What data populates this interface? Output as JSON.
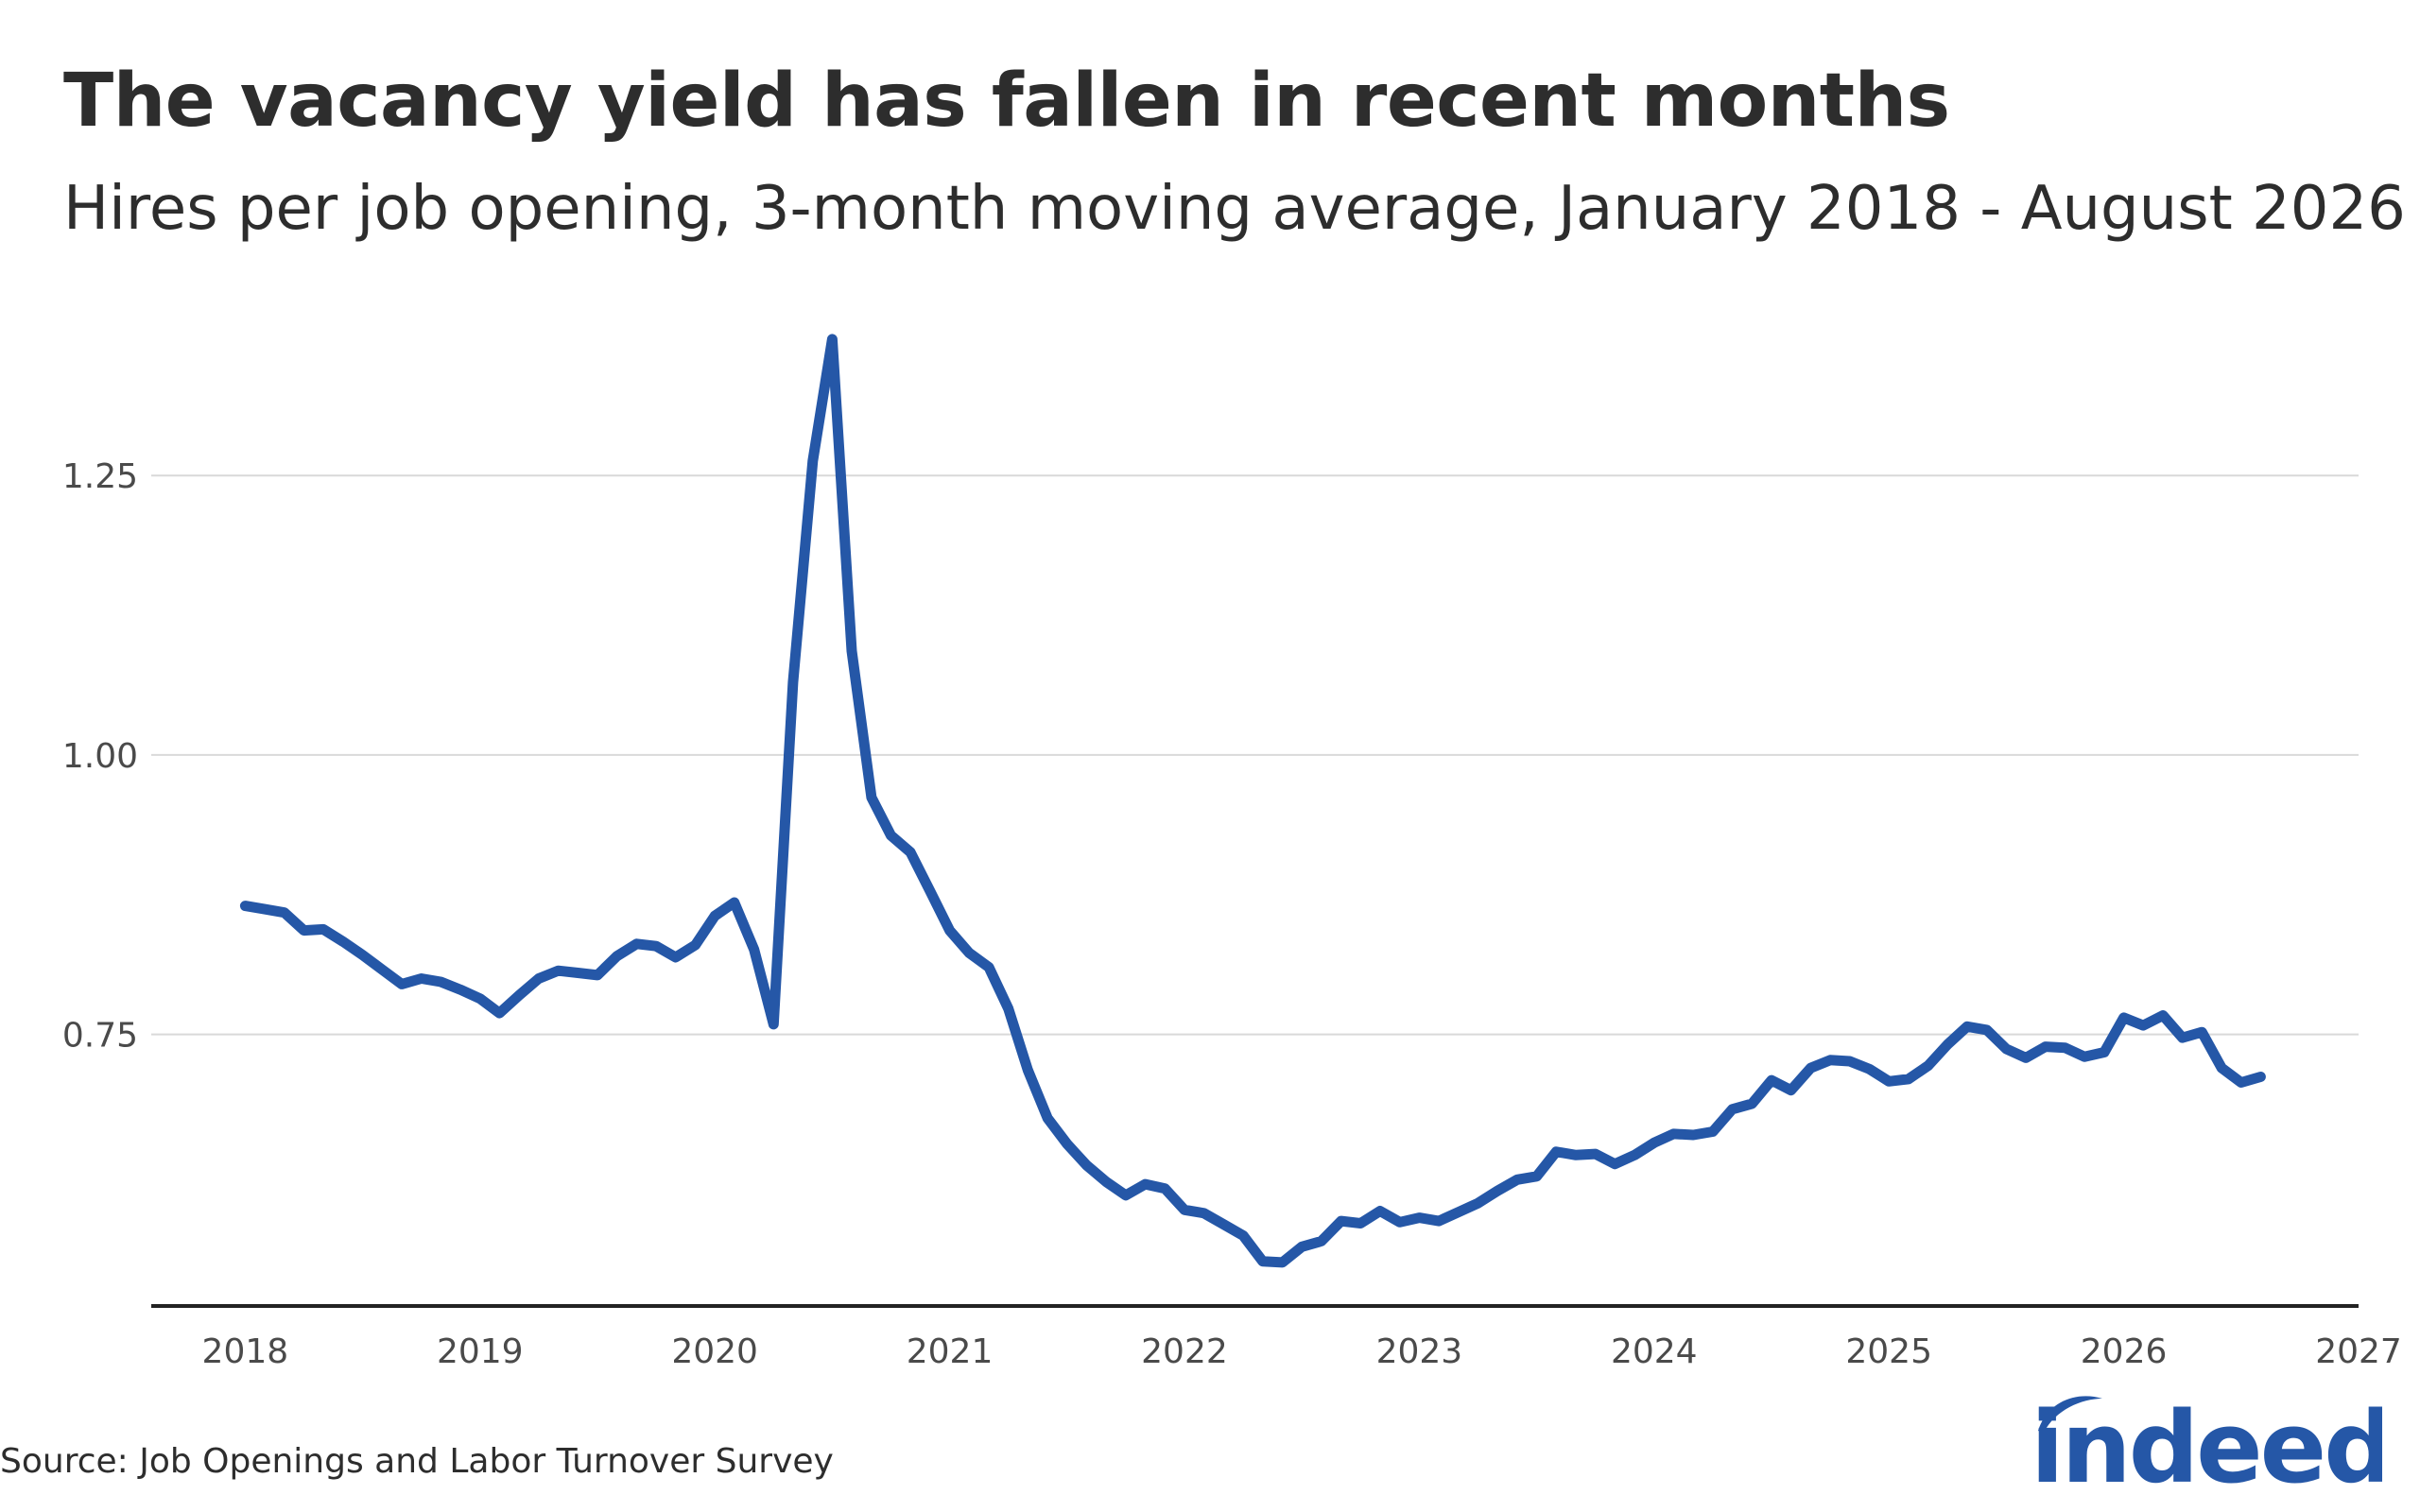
{
  "header": {
    "title": "The vacancy yield has fallen in recent months",
    "subtitle": "Hires per job opening, 3-month moving average, January 2018 - August 2026"
  },
  "footer": {
    "source": "Source: Job Openings and Labor Turnover Survey",
    "logo_text": "indeed"
  },
  "colors": {
    "line": "#2557a7",
    "gridline": "#d9d9d9",
    "axis": "#222222",
    "text": "#2d2d2d",
    "logo": "#2557a7"
  },
  "chart_data": {
    "type": "line",
    "title": "The vacancy yield has fallen in recent months",
    "subtitle": "Hires per job opening, 3-month moving average, January 2018 - August 2026",
    "xlabel": "",
    "ylabel": "",
    "xlim": [
      2017.6,
      2027
    ],
    "ylim": [
      0.507,
      1.388
    ],
    "grid": "horizontal",
    "legend": "none",
    "x_ticks": [
      "2018",
      "2019",
      "2020",
      "2021",
      "2022",
      "2023",
      "2024",
      "2025",
      "2026",
      "2027"
    ],
    "y_ticks": [
      "0.75",
      "1.00",
      "1.25"
    ],
    "y_tick_values": [
      0.75,
      1.0,
      1.25
    ],
    "x_tick_values": [
      2018,
      2019,
      2020,
      2021,
      2022,
      2023,
      2024,
      2025,
      2026,
      2027
    ],
    "series": [
      {
        "values": [
          [
            2018.0,
            0.865
          ],
          [
            2018.083,
            0.862
          ],
          [
            2018.167,
            0.859
          ],
          [
            2018.25,
            0.843
          ],
          [
            2018.333,
            0.844
          ],
          [
            2018.417,
            0.833
          ],
          [
            2018.5,
            0.821
          ],
          [
            2018.583,
            0.808
          ],
          [
            2018.667,
            0.795
          ],
          [
            2018.75,
            0.8
          ],
          [
            2018.833,
            0.797
          ],
          [
            2018.917,
            0.79
          ],
          [
            2019.0,
            0.782
          ],
          [
            2019.083,
            0.769
          ],
          [
            2019.167,
            0.785
          ],
          [
            2019.25,
            0.8
          ],
          [
            2019.333,
            0.807
          ],
          [
            2019.417,
            0.805
          ],
          [
            2019.5,
            0.803
          ],
          [
            2019.583,
            0.82
          ],
          [
            2019.667,
            0.831
          ],
          [
            2019.75,
            0.829
          ],
          [
            2019.833,
            0.819
          ],
          [
            2019.917,
            0.83
          ],
          [
            2020.0,
            0.856
          ],
          [
            2020.083,
            0.868
          ],
          [
            2020.167,
            0.826
          ],
          [
            2020.25,
            0.759
          ],
          [
            2020.333,
            1.065
          ],
          [
            2020.417,
            1.263
          ],
          [
            2020.5,
            1.372
          ],
          [
            2020.583,
            1.093
          ],
          [
            2020.667,
            0.962
          ],
          [
            2020.75,
            0.928
          ],
          [
            2020.833,
            0.913
          ],
          [
            2020.917,
            0.878
          ],
          [
            2021.0,
            0.843
          ],
          [
            2021.083,
            0.823
          ],
          [
            2021.167,
            0.81
          ],
          [
            2021.25,
            0.773
          ],
          [
            2021.333,
            0.718
          ],
          [
            2021.417,
            0.675
          ],
          [
            2021.5,
            0.652
          ],
          [
            2021.583,
            0.633
          ],
          [
            2021.667,
            0.618
          ],
          [
            2021.75,
            0.606
          ],
          [
            2021.833,
            0.616
          ],
          [
            2021.917,
            0.612
          ],
          [
            2022.0,
            0.593
          ],
          [
            2022.083,
            0.59
          ],
          [
            2022.167,
            0.58
          ],
          [
            2022.25,
            0.57
          ],
          [
            2022.333,
            0.547
          ],
          [
            2022.417,
            0.546
          ],
          [
            2022.5,
            0.56
          ],
          [
            2022.583,
            0.565
          ],
          [
            2022.667,
            0.583
          ],
          [
            2022.75,
            0.581
          ],
          [
            2022.833,
            0.592
          ],
          [
            2022.917,
            0.582
          ],
          [
            2023.0,
            0.586
          ],
          [
            2023.083,
            0.583
          ],
          [
            2023.167,
            0.591
          ],
          [
            2023.25,
            0.599
          ],
          [
            2023.333,
            0.61
          ],
          [
            2023.417,
            0.62
          ],
          [
            2023.5,
            0.623
          ],
          [
            2023.583,
            0.645
          ],
          [
            2023.667,
            0.642
          ],
          [
            2023.75,
            0.643
          ],
          [
            2023.833,
            0.634
          ],
          [
            2023.917,
            0.642
          ],
          [
            2024.0,
            0.653
          ],
          [
            2024.083,
            0.661
          ],
          [
            2024.167,
            0.66
          ],
          [
            2024.25,
            0.663
          ],
          [
            2024.333,
            0.683
          ],
          [
            2024.417,
            0.688
          ],
          [
            2024.5,
            0.709
          ],
          [
            2024.583,
            0.7
          ],
          [
            2024.667,
            0.72
          ],
          [
            2024.75,
            0.727
          ],
          [
            2024.833,
            0.726
          ],
          [
            2024.917,
            0.719
          ],
          [
            2025.0,
            0.708
          ],
          [
            2025.083,
            0.71
          ],
          [
            2025.167,
            0.722
          ],
          [
            2025.25,
            0.741
          ],
          [
            2025.333,
            0.757
          ],
          [
            2025.417,
            0.754
          ],
          [
            2025.5,
            0.737
          ],
          [
            2025.583,
            0.729
          ],
          [
            2025.667,
            0.739
          ],
          [
            2025.75,
            0.738
          ],
          [
            2025.833,
            0.73
          ],
          [
            2025.917,
            0.734
          ],
          [
            2026.0,
            0.765
          ],
          [
            2026.083,
            0.758
          ],
          [
            2026.167,
            0.767
          ],
          [
            2026.25,
            0.747
          ],
          [
            2026.333,
            0.752
          ],
          [
            2026.417,
            0.72
          ],
          [
            2026.5,
            0.707
          ],
          [
            2026.583,
            0.712
          ]
        ]
      }
    ]
  }
}
